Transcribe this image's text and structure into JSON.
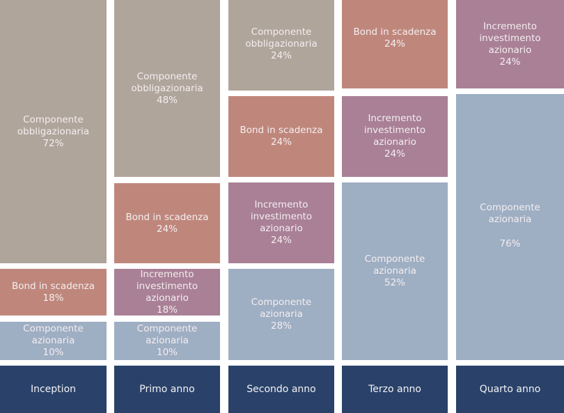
{
  "colors": {
    "obbligazionaria": "#b0a59b",
    "bond": "#bf877c",
    "incremento": "#a98096",
    "azionaria": "#9eaec3",
    "label": "#2a4269"
  },
  "columns": [
    {
      "label": "Inception",
      "segments": [
        {
          "kind": "obbligazionaria",
          "lines": [
            "Componente",
            "obbligazionaria"
          ],
          "pct": "72%"
        },
        {
          "kind": "bond",
          "lines": [
            "Bond in scadenza"
          ],
          "pct": "18%"
        },
        {
          "kind": "azionaria",
          "lines": [
            "Componente",
            "azionaria"
          ],
          "pct": "10%"
        }
      ]
    },
    {
      "label": "Primo anno",
      "segments": [
        {
          "kind": "obbligazionaria",
          "lines": [
            "Componente",
            "obbligazionaria"
          ],
          "pct": "48%"
        },
        {
          "kind": "bond",
          "lines": [
            "Bond in scadenza"
          ],
          "pct": "24%"
        },
        {
          "kind": "incremento",
          "lines": [
            "Incremento",
            "investimento",
            "azionario"
          ],
          "pct": "18%"
        },
        {
          "kind": "azionaria",
          "lines": [
            "Componente",
            "azionaria"
          ],
          "pct": "10%"
        }
      ]
    },
    {
      "label": "Secondo anno",
      "segments": [
        {
          "kind": "obbligazionaria",
          "lines": [
            "Componente",
            "obbligazionaria"
          ],
          "pct": "24%"
        },
        {
          "kind": "bond",
          "lines": [
            "Bond in scadenza"
          ],
          "pct": "24%"
        },
        {
          "kind": "incremento",
          "lines": [
            "Incremento",
            "investimento",
            "azionario"
          ],
          "pct": "24%"
        },
        {
          "kind": "azionaria",
          "lines": [
            "Componente",
            "azionaria"
          ],
          "pct": "28%"
        }
      ]
    },
    {
      "label": "Terzo anno",
      "segments": [
        {
          "kind": "bond",
          "lines": [
            "Bond in scadenza"
          ],
          "pct": "24%"
        },
        {
          "kind": "incremento",
          "lines": [
            "Incremento",
            "investimento",
            "azionario"
          ],
          "pct": "24%"
        },
        {
          "kind": "azionaria",
          "lines": [
            "Componente",
            "azionaria"
          ],
          "pct": "52%"
        }
      ]
    },
    {
      "label": "Quarto anno",
      "segments": [
        {
          "kind": "incremento",
          "lines": [
            "Incremento",
            "investimento",
            "azionario"
          ],
          "pct": "24%"
        },
        {
          "kind": "azionaria",
          "lines": [
            "Componente",
            "azionaria"
          ],
          "pct": "76%"
        }
      ]
    }
  ]
}
